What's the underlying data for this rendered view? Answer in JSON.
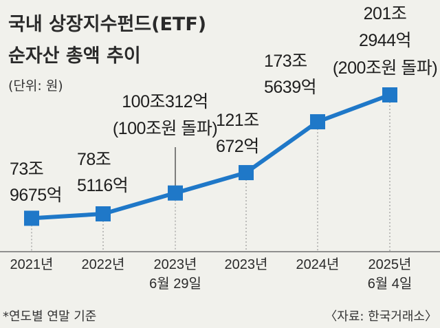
{
  "header": {
    "title_line1": "국내 상장지수펀드(ETF)",
    "title_line2": "순자산 총액 추이",
    "unit": "(단위: 원)"
  },
  "footer": {
    "note": "*연도별 연말 기준",
    "source": "〈자료: 한국거래소〉"
  },
  "colors": {
    "line": "#1f78c8",
    "marker": "#1f78c8",
    "background": "#f1f1ec",
    "guide": "#9a9a9a"
  },
  "chart_data": {
    "type": "line",
    "title": "국내 상장지수펀드(ETF) 순자산 총액 추이",
    "unit": "(단위: 원)",
    "x_ticks": [
      [
        "2021년"
      ],
      [
        "2022년"
      ],
      [
        "2023년",
        "6월 29일"
      ],
      [
        "2023년"
      ],
      [
        "2024년"
      ],
      [
        "2025년",
        "6월 4일"
      ]
    ],
    "values_eok": [
      739675,
      785116,
      1000312,
      1210672,
      1735639,
      2012944
    ],
    "point_labels": [
      [
        "73조",
        "9675억"
      ],
      [
        "78조",
        "5116억"
      ],
      [
        "100조312억",
        "(100조원 돌파)"
      ],
      [
        "121조",
        "672억"
      ],
      [
        "173조",
        "5639억"
      ],
      [
        "201조",
        "2944억",
        "(200조원 돌파)"
      ]
    ],
    "ylim_eok": [
      700000,
      2050000
    ]
  }
}
